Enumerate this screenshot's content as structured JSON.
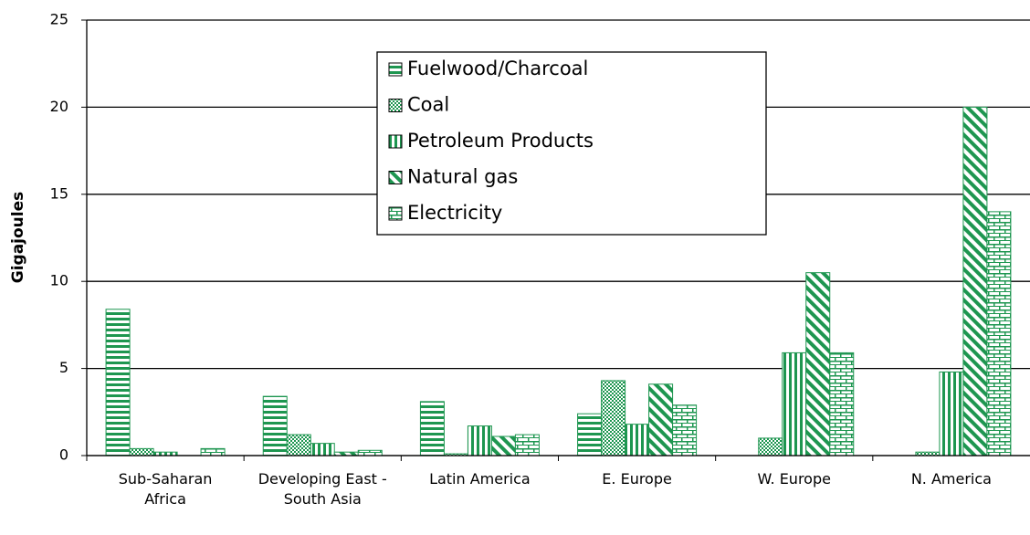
{
  "chart_data": {
    "type": "bar",
    "y_label": "Gigajoules",
    "categories": [
      "Sub-Saharan Africa",
      "Developing East -South Asia",
      "Latin America",
      "E. Europe",
      "W. Europe",
      "N. America"
    ],
    "series": [
      {
        "name": "Fuelwood/Charcoal",
        "color": "#1e9650",
        "values": [
          8.4,
          3.4,
          3.1,
          2.4,
          0,
          0
        ]
      },
      {
        "name": "Coal",
        "color": "#1e9650",
        "values": [
          0.4,
          1.2,
          0.1,
          4.3,
          1.0,
          0.2
        ]
      },
      {
        "name": "Petroleum Products",
        "color": "#1e9650",
        "values": [
          0.2,
          0.7,
          1.7,
          1.8,
          5.9,
          4.8
        ]
      },
      {
        "name": "Natural gas",
        "color": "#1e9650",
        "values": [
          0,
          0.2,
          1.1,
          4.1,
          10.5,
          20
        ]
      },
      {
        "name": "Electricity",
        "color": "#1e9650",
        "values": [
          0.4,
          0.3,
          1.2,
          2.9,
          5.9,
          14
        ]
      }
    ],
    "ylim": [
      0,
      25
    ],
    "yticks": [
      0,
      5,
      10,
      15,
      20,
      25
    ],
    "grid": true
  }
}
